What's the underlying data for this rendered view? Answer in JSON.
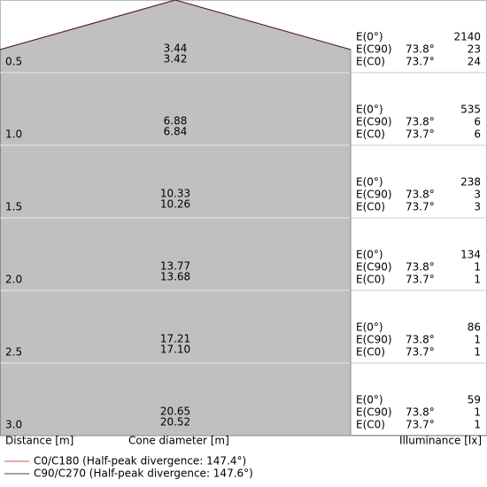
{
  "illuminance_labels": [
    "E(0°)",
    "E(C90)",
    "E(C0)"
  ],
  "rows": [
    {
      "distance": "0.5",
      "diameters": [
        "3.44",
        "3.42"
      ],
      "e0": "2140",
      "c90_angle": "73.8°",
      "c90": "23",
      "c0_angle": "73.7°",
      "c0": "24"
    },
    {
      "distance": "1.0",
      "diameters": [
        "6.88",
        "6.84"
      ],
      "e0": "535",
      "c90_angle": "73.8°",
      "c90": "6",
      "c0_angle": "73.7°",
      "c0": "6"
    },
    {
      "distance": "1.5",
      "diameters": [
        "10.33",
        "10.26"
      ],
      "e0": "238",
      "c90_angle": "73.8°",
      "c90": "3",
      "c0_angle": "73.7°",
      "c0": "3"
    },
    {
      "distance": "2.0",
      "diameters": [
        "13.77",
        "13.68"
      ],
      "e0": "134",
      "c90_angle": "73.8°",
      "c90": "1",
      "c0_angle": "73.7°",
      "c0": "1"
    },
    {
      "distance": "2.5",
      "diameters": [
        "17.21",
        "17.10"
      ],
      "e0": "86",
      "c90_angle": "73.8°",
      "c90": "1",
      "c0_angle": "73.7°",
      "c0": "1"
    },
    {
      "distance": "3.0",
      "diameters": [
        "20.65",
        "20.52"
      ],
      "e0": "59",
      "c90_angle": "73.8°",
      "c90": "1",
      "c0_angle": "73.7°",
      "c0": "1"
    }
  ],
  "footer": {
    "distance": "Distance [m]",
    "diameter": "Cone diameter [m]",
    "illuminance": "Illuminance [lx]"
  },
  "legend": [
    {
      "label": "C0/C180 (Half-peak divergence: 147.4°)",
      "color": "#d9534f"
    },
    {
      "label": "C90/C270 (Half-peak divergence: 147.6°)",
      "color": "#444444"
    }
  ]
}
